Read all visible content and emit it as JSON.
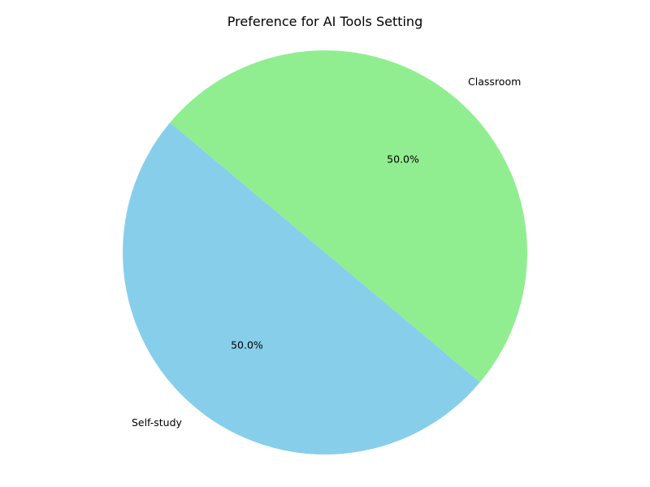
{
  "chart_data": {
    "type": "pie",
    "title": "Preference for AI Tools Setting",
    "slices": [
      {
        "label": "Classroom",
        "value": 50.0,
        "pct_label": "50.0%",
        "color": "#90ee90"
      },
      {
        "label": "Self-study",
        "value": 50.0,
        "pct_label": "50.0%",
        "color": "#87ceeb"
      }
    ],
    "start_angle_deg": 140,
    "direction": "counterclockwise",
    "legend": "none"
  }
}
